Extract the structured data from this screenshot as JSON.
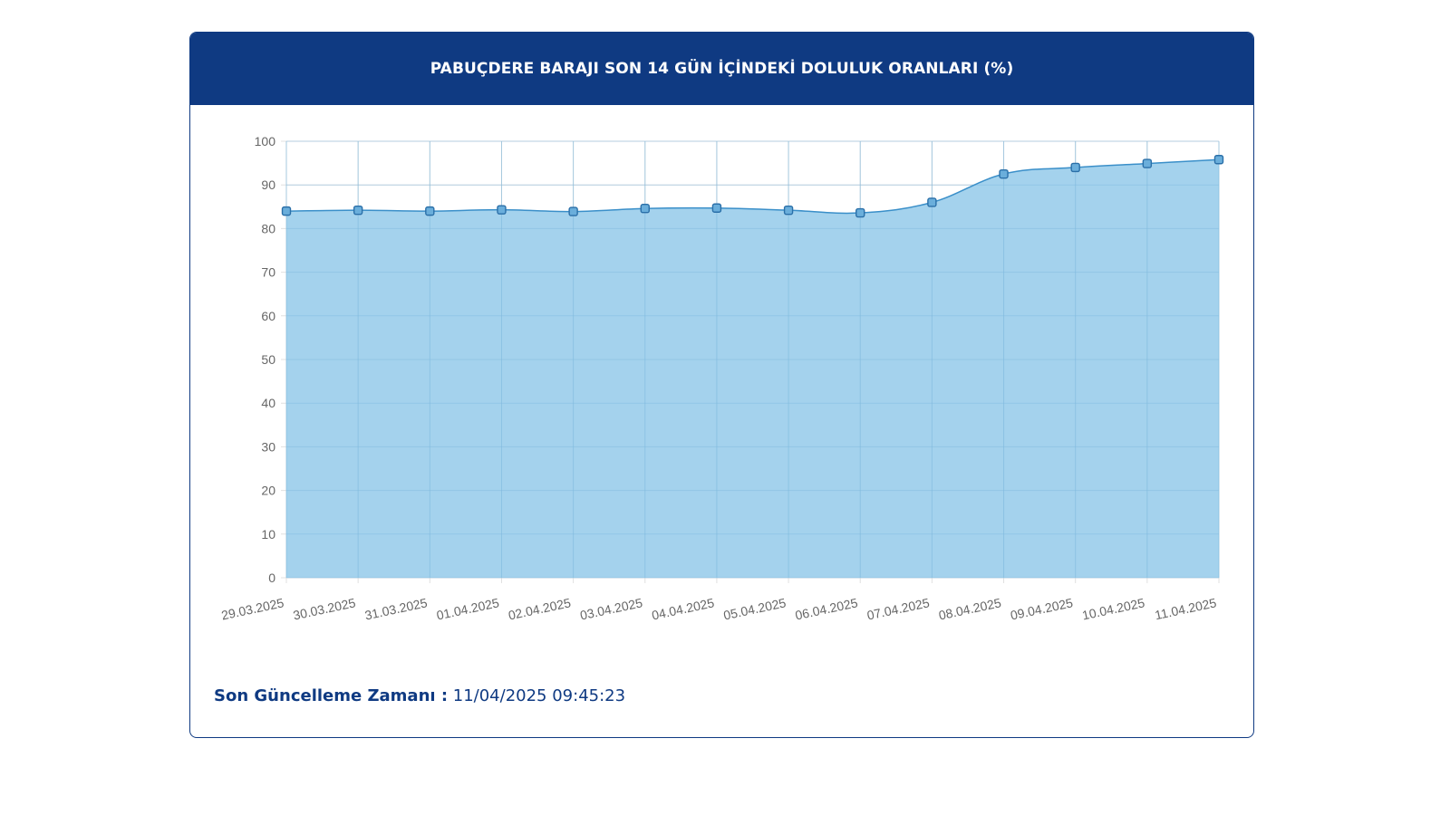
{
  "header": {
    "title": "PABUÇDERE BARAJI SON 14 GÜN İÇİNDEKİ DOLULUK ORANLARI (%)"
  },
  "update": {
    "label": "Son Güncelleme Zamanı :",
    "value": "11/04/2025 09:45:23"
  },
  "colors": {
    "header_bg": "#0f3a82",
    "line": "#3a8fc9",
    "fill": "#9fd0ec",
    "point_fill": "#6aaedb",
    "grid": "#e0e0e0"
  },
  "chart_data": {
    "type": "area",
    "categories": [
      "29.03.2025",
      "30.03.2025",
      "31.03.2025",
      "01.04.2025",
      "02.04.2025",
      "03.04.2025",
      "04.04.2025",
      "05.04.2025",
      "06.04.2025",
      "07.04.2025",
      "08.04.2025",
      "09.04.2025",
      "10.04.2025",
      "11.04.2025"
    ],
    "values": [
      84.0,
      84.2,
      84.0,
      84.3,
      83.9,
      84.6,
      84.7,
      84.2,
      83.6,
      86.0,
      92.5,
      94.0,
      94.9,
      95.8
    ],
    "ylim": [
      0,
      100
    ],
    "yticks": [
      0,
      10,
      20,
      30,
      40,
      50,
      60,
      70,
      80,
      90,
      100
    ],
    "grid": true,
    "legend": "none"
  }
}
